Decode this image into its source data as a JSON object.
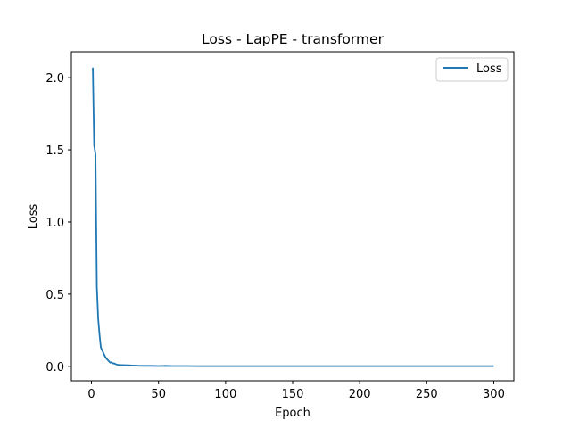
{
  "chart_data": {
    "type": "line",
    "title": "Loss - LapPE - transformer",
    "xlabel": "Epoch",
    "ylabel": "Loss",
    "xlim": [
      -15,
      315
    ],
    "ylim": [
      -0.1,
      2.18
    ],
    "xticks": [
      0,
      50,
      100,
      150,
      200,
      250,
      300
    ],
    "yticks": [
      0.0,
      0.5,
      1.0,
      1.5,
      2.0
    ],
    "ytick_labels": [
      "0.0",
      "0.5",
      "1.0",
      "1.5",
      "2.0"
    ],
    "legend_position": "top-right",
    "grid": false,
    "series": [
      {
        "name": "Loss",
        "color": "#1f77b4",
        "x": [
          1,
          2,
          3,
          4,
          5,
          6,
          7,
          8,
          9,
          10,
          11,
          12,
          13,
          14,
          15,
          16,
          17,
          18,
          19,
          20,
          22,
          25,
          28,
          30,
          35,
          40,
          45,
          50,
          55,
          60,
          70,
          80,
          90,
          100,
          120,
          150,
          200,
          250,
          300
        ],
        "y": [
          2.07,
          1.53,
          1.47,
          0.55,
          0.33,
          0.22,
          0.13,
          0.11,
          0.09,
          0.07,
          0.055,
          0.045,
          0.035,
          0.025,
          0.028,
          0.02,
          0.02,
          0.015,
          0.012,
          0.01,
          0.009,
          0.008,
          0.007,
          0.006,
          0.004,
          0.003,
          0.003,
          0.002,
          0.003,
          0.002,
          0.002,
          0.001,
          0.001,
          0.001,
          0.001,
          0.001,
          0.001,
          0.001,
          0.001
        ]
      }
    ]
  }
}
